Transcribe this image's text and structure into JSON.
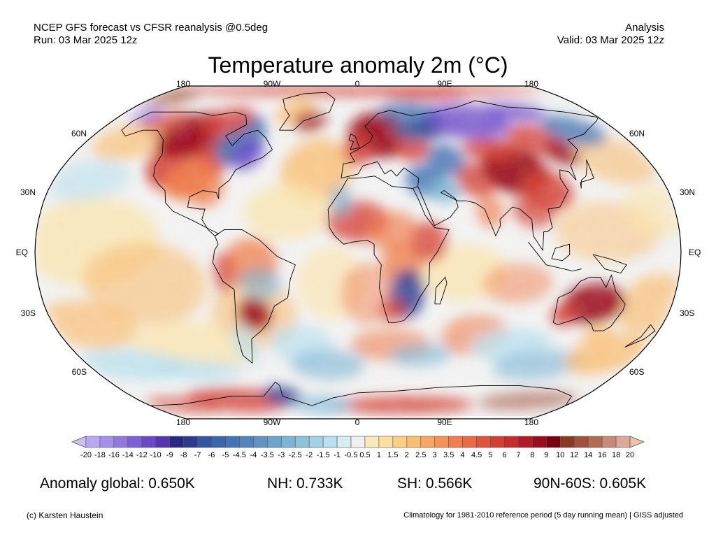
{
  "header": {
    "line1_left": "NCEP GFS forecast vs CFSR reanalysis @0.5deg",
    "line2_left": "Run: 03 Mar 2025 12z",
    "line1_right": "Analysis",
    "line2_right": "Valid: 03 Mar 2025 12z"
  },
  "title": "Temperature anomaly 2m (°C)",
  "map": {
    "projection": "Robinson",
    "lon_ticks_top": [
      "180",
      "90W",
      "0",
      "90E",
      "180"
    ],
    "lon_ticks_bottom": [
      "180",
      "90W",
      "0",
      "90E",
      "180"
    ],
    "lat_ticks_left": [
      "60N",
      "30N",
      "EQ",
      "30S",
      "60S"
    ],
    "lat_ticks_right": [
      "60N",
      "30N",
      "EQ",
      "30S",
      "60S"
    ],
    "ocean_neutral_color": "#f2f2f2",
    "coast_color": "#000000"
  },
  "colorbar": {
    "labels": [
      "-20",
      "-18",
      "-16",
      "-14",
      "-12",
      "-10",
      "-9",
      "-8",
      "-7",
      "-6",
      "-5",
      "-4.5",
      "-4",
      "-3.5",
      "-3",
      "-2.5",
      "-2",
      "-1.5",
      "-1",
      "-0.5",
      "0.5",
      "1",
      "1.5",
      "2",
      "2.5",
      "3",
      "3.5",
      "4",
      "4.5",
      "5",
      "6",
      "7",
      "8",
      "9",
      "10",
      "12",
      "14",
      "16",
      "18",
      "20"
    ],
    "colors": [
      "#c9c0f5",
      "#b7a7f0",
      "#a490ea",
      "#9078e0",
      "#7d60d6",
      "#6a48c8",
      "#5634b0",
      "#2b2785",
      "#2c3d8e",
      "#34559f",
      "#3c66ab",
      "#4674b3",
      "#5283bb",
      "#5e93c3",
      "#6ba4cc",
      "#7bb4d4",
      "#8cc3dc",
      "#a0d2e5",
      "#b9e0ee",
      "#d5edf5",
      "#f0f0f0",
      "#fbe9b7",
      "#fde0a0",
      "#fbcf86",
      "#f9bd72",
      "#f6a862",
      "#f39357",
      "#ef7e4c",
      "#e96a43",
      "#e0543b",
      "#d43f33",
      "#c72c2d",
      "#b31c26",
      "#9b0d1e",
      "#7a0011",
      "#8b3a22",
      "#a0523a",
      "#b36c52",
      "#c9897a",
      "#dca898",
      "#eec0ae"
    ]
  },
  "stats": {
    "global": "Anomaly global: 0.650K",
    "nh": "NH: 0.733K",
    "sh": "SH: 0.566K",
    "arctic": "90N-60S: 0.605K"
  },
  "footer": {
    "credit": "(c) Karsten Haustein",
    "note": "Climatology for 1981-2010 reference period (5 day running mean) | GISS adjusted"
  }
}
